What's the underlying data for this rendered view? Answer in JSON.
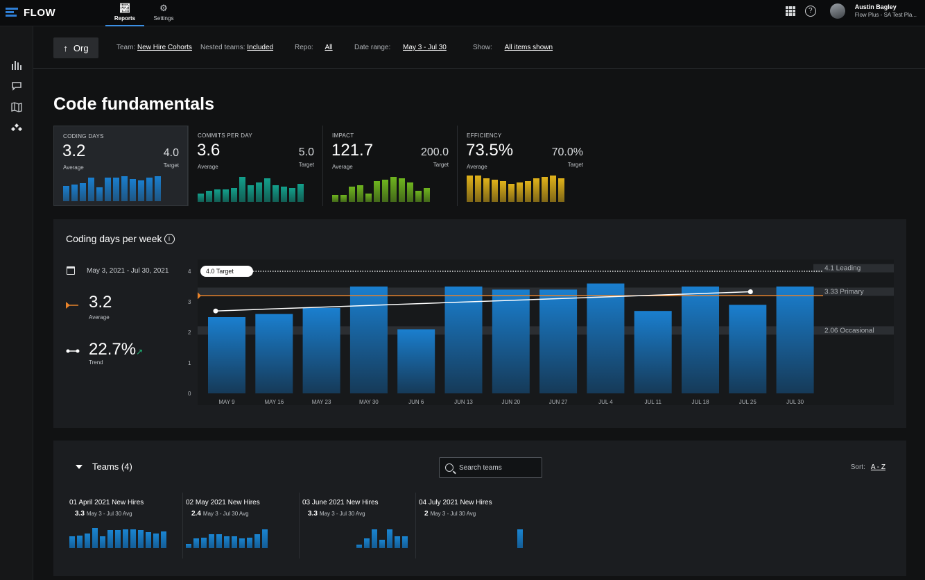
{
  "app": {
    "name": "FLOW"
  },
  "nav": {
    "tabs": [
      {
        "label": "Reports",
        "icon": "reports-icon",
        "active": true
      },
      {
        "label": "Settings",
        "icon": "gear-icon",
        "active": false
      }
    ]
  },
  "user": {
    "name": "Austin Bagley",
    "subtitle": "Flow Plus - SA Test Pla..."
  },
  "filters": {
    "org_label": "Org",
    "team_label": "Team:",
    "team_value": "New Hire Cohorts",
    "nested_label": "Nested teams:",
    "nested_value": "Included",
    "repo_label": "Repo:",
    "repo_value": "All",
    "date_label": "Date range:",
    "date_value": "May 3 - Jul 30",
    "show_label": "Show:",
    "show_value": "All items shown"
  },
  "page_title": "Code fundamentals",
  "metrics": [
    {
      "label": "CODING DAYS",
      "value": "3.2",
      "value_sub": "Average",
      "target": "4.0",
      "target_sub": "Target",
      "color": "#1a7fcf",
      "spark": [
        0.55,
        0.6,
        0.65,
        0.85,
        0.5,
        0.85,
        0.85,
        0.9,
        0.8,
        0.75,
        0.85,
        0.9
      ]
    },
    {
      "label": "COMMITS PER DAY",
      "value": "3.6",
      "value_sub": "Average",
      "target": "5.0",
      "target_sub": "Target",
      "color": "#13a08c",
      "spark": [
        0.3,
        0.4,
        0.45,
        0.45,
        0.5,
        0.9,
        0.6,
        0.7,
        0.85,
        0.6,
        0.55,
        0.5,
        0.65
      ]
    },
    {
      "label": "IMPACT",
      "value": "121.7",
      "value_sub": "Average",
      "target": "200.0",
      "target_sub": "Target",
      "color": "#6fb51f",
      "spark": [
        0.25,
        0.25,
        0.55,
        0.6,
        0.3,
        0.75,
        0.8,
        0.9,
        0.85,
        0.7,
        0.4,
        0.5
      ]
    },
    {
      "label": "EFFICIENCY",
      "value": "73.5%",
      "value_sub": "Average",
      "target": "70.0%",
      "target_sub": "Target",
      "color": "#e0b21a",
      "spark": [
        0.95,
        0.95,
        0.85,
        0.8,
        0.75,
        0.65,
        0.7,
        0.75,
        0.85,
        0.9,
        0.95,
        0.85
      ]
    }
  ],
  "chart_panel": {
    "title": "Coding days per week",
    "date_range": "May 3, 2021 - Jul 30, 2021",
    "average_value": "3.2",
    "average_label": "Average",
    "trend_value": "22.7%",
    "trend_label": "Trend",
    "target_badge": "4.0 Target"
  },
  "chart_data": {
    "type": "bar",
    "ylabel": "",
    "ylim": [
      0,
      4
    ],
    "yticks": [
      "0",
      "1",
      "2",
      "3",
      "4"
    ],
    "categories": [
      "MAY 9",
      "MAY 16",
      "MAY 23",
      "MAY 30",
      "JUN 6",
      "JUN 13",
      "JUN 20",
      "JUN 27",
      "JUL 4",
      "JUL 11",
      "JUL 18",
      "JUL 25",
      "JUL 30"
    ],
    "values": [
      2.5,
      2.6,
      2.8,
      3.5,
      2.1,
      3.5,
      3.4,
      3.4,
      3.6,
      2.7,
      3.5,
      2.9,
      3.5
    ],
    "average": 3.2,
    "target": 4.0,
    "trend_start": 2.7,
    "trend_end": 3.33,
    "benchmarks": [
      {
        "label": "4.1 Leading",
        "value": 4.1
      },
      {
        "label": "3.33 Primary",
        "value": 3.33
      },
      {
        "label": "2.06 Occasional",
        "value": 2.06
      }
    ],
    "bar_color": "#1a7fcf",
    "average_color": "#e8832a"
  },
  "teams": {
    "header": "Teams (4)",
    "search_placeholder": "Search teams",
    "sort_label": "Sort:",
    "sort_value": "A - Z",
    "items": [
      {
        "name": "01 April 2021 New Hires",
        "value": "3.3",
        "value_sub": "May 3 - Jul 30 Avg",
        "spark": [
          0.55,
          0.6,
          0.7,
          0.95,
          0.55,
          0.85,
          0.85,
          0.9,
          0.9,
          0.85,
          0.75,
          0.7,
          0.8
        ]
      },
      {
        "name": "02 May 2021 New Hires",
        "value": "2.4",
        "value_sub": "May 3 - Jul 30 Avg",
        "spark": [
          0.2,
          0.45,
          0.5,
          0.65,
          0.65,
          0.55,
          0.55,
          0.45,
          0.5,
          0.65,
          0.9
        ]
      },
      {
        "name": "03 June 2021 New Hires",
        "value": "3.3",
        "value_sub": "May 3 - Jul 30 Avg",
        "spark": [
          0.15,
          0.45,
          0.9,
          0.4,
          0.9,
          0.55,
          0.55
        ]
      },
      {
        "name": "04 July 2021 New Hires",
        "value": "2",
        "value_sub": "May 3 - Jul 30 Avg",
        "spark": [
          0.9
        ]
      }
    ]
  }
}
